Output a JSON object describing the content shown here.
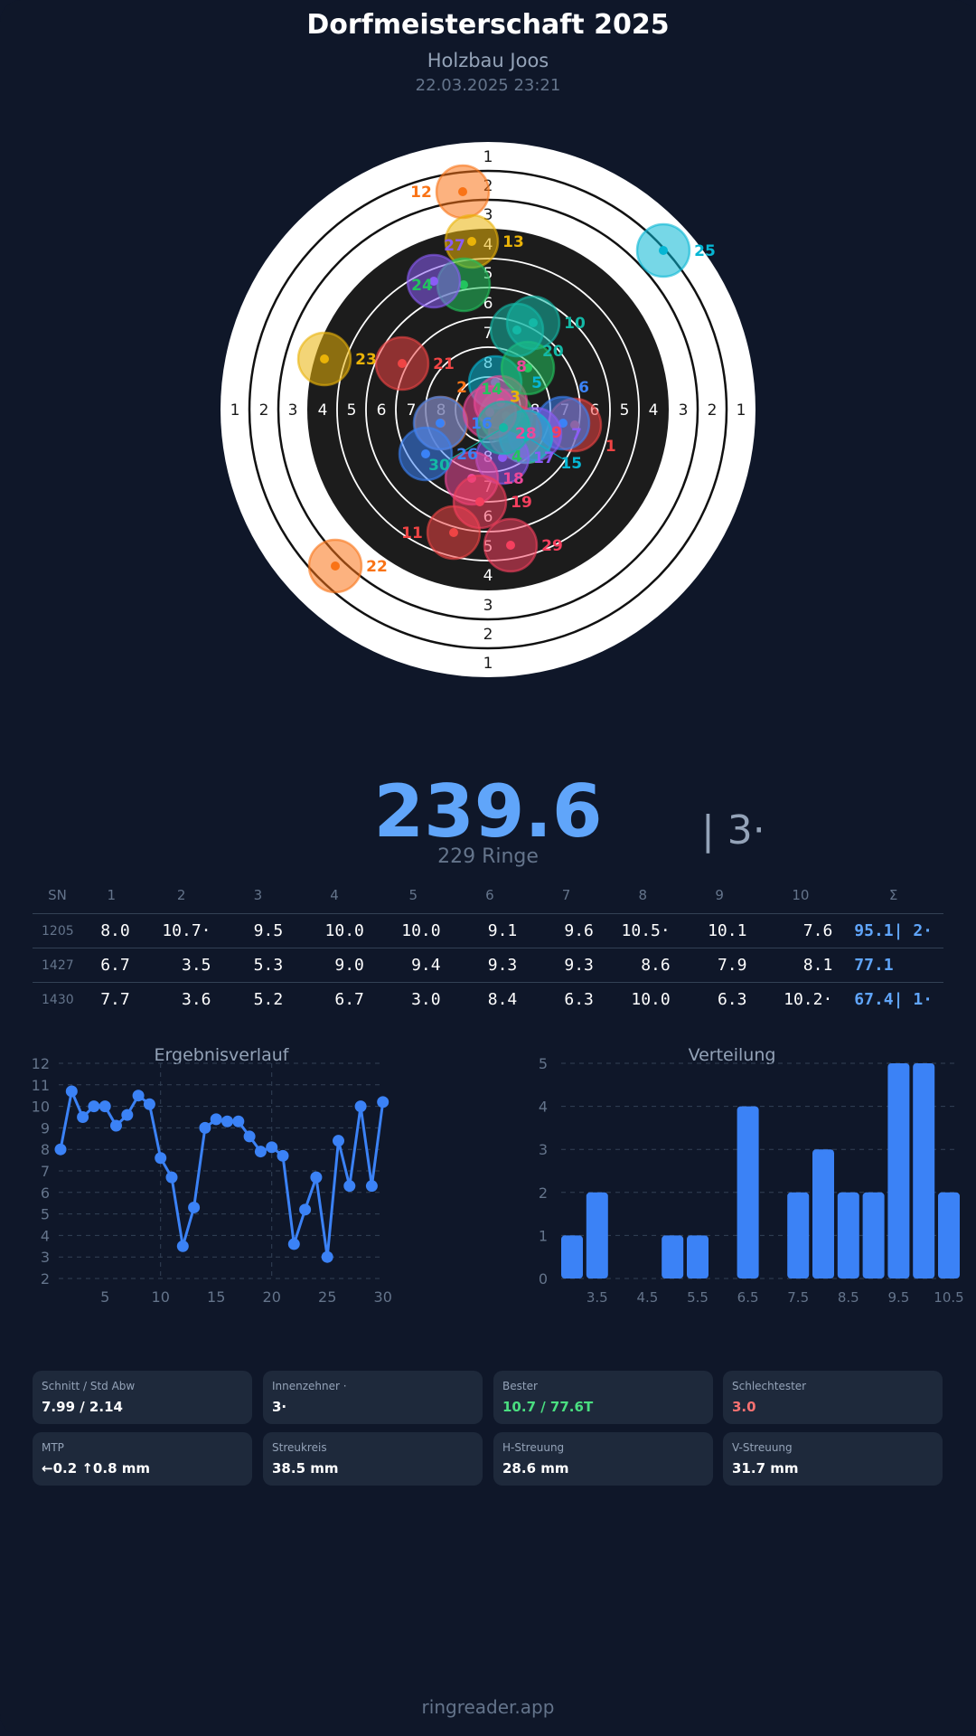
{
  "header": {
    "title": "Dorfmeisterschaft 2025",
    "subtitle": "Holzbau Joos",
    "datetime": "22.03.2025 23:21"
  },
  "target": {
    "ring_labels": [
      "1",
      "2",
      "3",
      "4",
      "5",
      "6",
      "7",
      "8"
    ],
    "shot_colors": [
      "#ef4444",
      "#f97316",
      "#eab308",
      "#22c55e",
      "#06b6d4",
      "#3b82f6",
      "#8b5cf6",
      "#ec4899",
      "#f43f5e",
      "#14b8a6"
    ],
    "shots": [
      1,
      2,
      3,
      4,
      5,
      6,
      7,
      8,
      9,
      10,
      11,
      12,
      13,
      14,
      15,
      16,
      17,
      18,
      19,
      20,
      21,
      22,
      23,
      24,
      25,
      26,
      27,
      28,
      29,
      30
    ]
  },
  "summary": {
    "total": "239.6",
    "inner_tens": "| 3·",
    "rings": "229 Ringe"
  },
  "table": {
    "headers": [
      "SN",
      "1",
      "2",
      "3",
      "4",
      "5",
      "6",
      "7",
      "8",
      "9",
      "10",
      "Σ"
    ],
    "rows": [
      {
        "sn": "1205",
        "values": [
          "8.0",
          "10.7·",
          "9.5",
          "10.0",
          "10.0",
          "9.1",
          "9.6",
          "10.5·",
          "10.1",
          "7.6"
        ],
        "sum": "95.1| 2·"
      },
      {
        "sn": "1427",
        "values": [
          "6.7",
          "3.5",
          "5.3",
          "9.0",
          "9.4",
          "9.3",
          "9.3",
          "8.6",
          "7.9",
          "8.1"
        ],
        "sum": "77.1"
      },
      {
        "sn": "1430",
        "values": [
          "7.7",
          "3.6",
          "5.2",
          "6.7",
          "3.0",
          "8.4",
          "6.3",
          "10.0",
          "6.3",
          "10.2·"
        ],
        "sum": "67.4| 1·"
      }
    ]
  },
  "chart_data": [
    {
      "type": "line",
      "title": "Ergebnisverlauf",
      "color": "#3b82f6",
      "x": [
        1,
        2,
        3,
        4,
        5,
        6,
        7,
        8,
        9,
        10,
        11,
        12,
        13,
        14,
        15,
        16,
        17,
        18,
        19,
        20,
        21,
        22,
        23,
        24,
        25,
        26,
        27,
        28,
        29,
        30
      ],
      "y": [
        8.0,
        10.7,
        9.5,
        10.0,
        10.0,
        9.1,
        9.6,
        10.5,
        10.1,
        7.6,
        6.7,
        3.5,
        5.3,
        9.0,
        9.4,
        9.3,
        9.3,
        8.6,
        7.9,
        8.1,
        7.7,
        3.6,
        5.2,
        6.7,
        3.0,
        8.4,
        6.3,
        10.0,
        6.3,
        10.2
      ],
      "xticks": [
        "5",
        "10",
        "15",
        "20",
        "25",
        "30"
      ],
      "yticks": [
        "2",
        "3",
        "4",
        "5",
        "6",
        "7",
        "8",
        "9",
        "10",
        "11",
        "12"
      ],
      "xlim": [
        0,
        30
      ],
      "ylim": [
        2,
        12
      ],
      "grid": true
    },
    {
      "type": "bar",
      "title": "Verteilung",
      "color": "#3b82f6",
      "categories": [
        "3.0",
        "3.5",
        "4.0",
        "4.5",
        "5.0",
        "5.5",
        "6.0",
        "6.5",
        "7.0",
        "7.5",
        "8.0",
        "8.5",
        "9.0",
        "9.5",
        "10.0",
        "10.5"
      ],
      "values": [
        1,
        2,
        0,
        0,
        1,
        1,
        0,
        4,
        0,
        2,
        3,
        2,
        2,
        5,
        5,
        2
      ],
      "xticks": [
        "3.5",
        "4.5",
        "5.5",
        "6.5",
        "7.5",
        "8.5",
        "9.5",
        "10.5"
      ],
      "yticks": [
        "0",
        "1",
        "2",
        "3",
        "4",
        "5"
      ],
      "ylim": [
        0,
        5
      ],
      "grid": true
    }
  ],
  "stats": [
    {
      "label": "Schnitt / Std Abw",
      "value": "7.99 / 2.14",
      "color": "#ffffff"
    },
    {
      "label": "Innenzehner ·",
      "value": "3·",
      "color": "#ffffff"
    },
    {
      "label": "Bester",
      "value": "10.7 / 77.6T",
      "color": "#4ade80"
    },
    {
      "label": "Schlechtester",
      "value": "3.0",
      "color": "#f87171"
    },
    {
      "label": "MTP",
      "value": "←0.2 ↑0.8 mm",
      "color": "#ffffff"
    },
    {
      "label": "Streukreis",
      "value": "38.5 mm",
      "color": "#ffffff"
    },
    {
      "label": "H-Streuung",
      "value": "28.6 mm",
      "color": "#ffffff"
    },
    {
      "label": "V-Streuung",
      "value": "31.7 mm",
      "color": "#ffffff"
    }
  ],
  "footer": "ringreader.app"
}
